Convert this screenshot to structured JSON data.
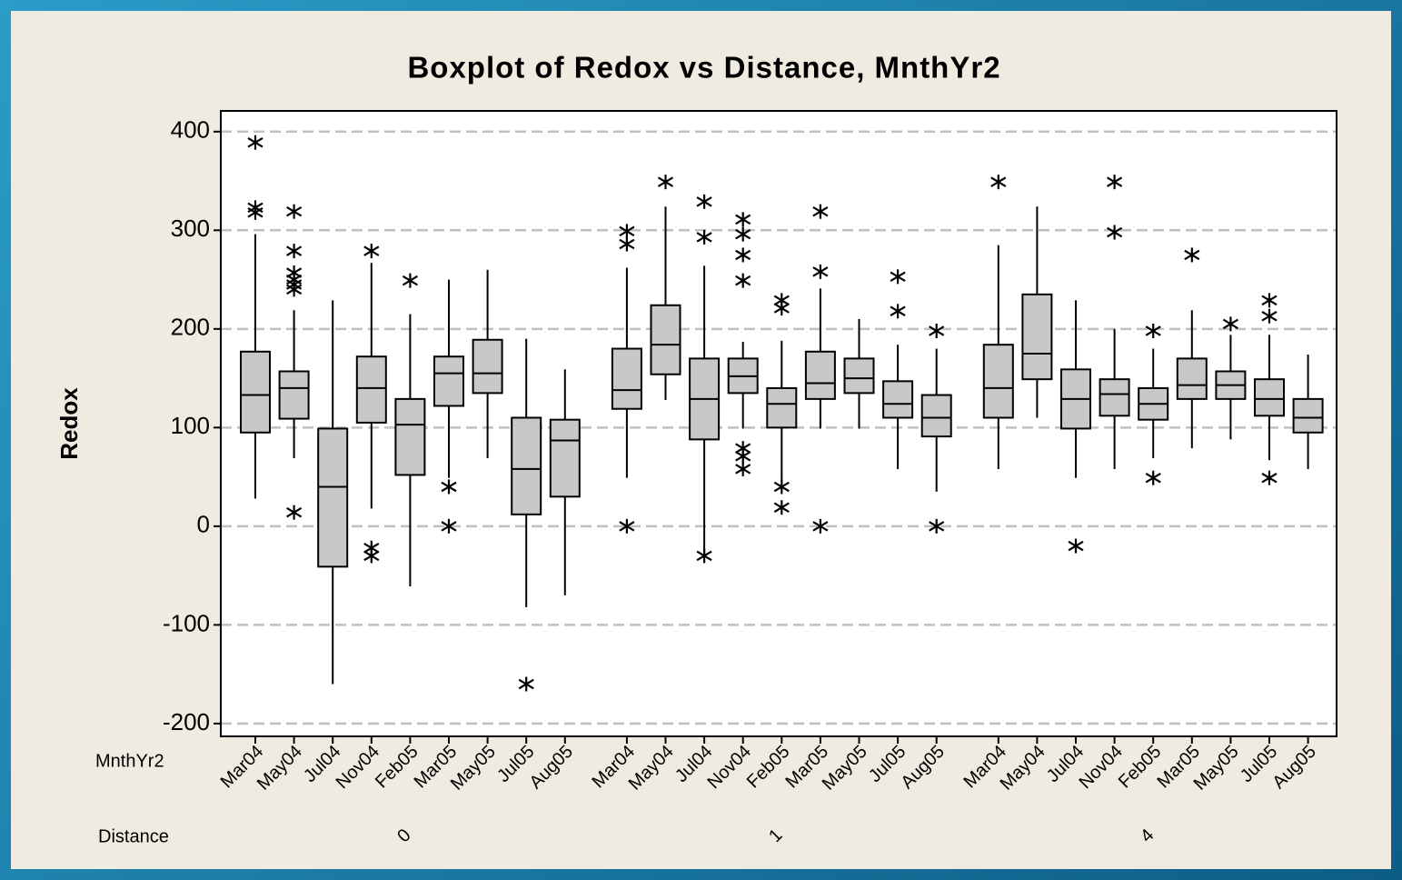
{
  "chart_data": {
    "type": "boxplot",
    "title": "Boxplot of Redox vs Distance, MnthYr2",
    "y_label": "Redox",
    "x_row_labels": [
      "MnthYr2",
      "Distance"
    ],
    "ylim": [
      -213,
      421
    ],
    "yticks": [
      -200,
      -100,
      0,
      100,
      200,
      300,
      400
    ],
    "grid": true,
    "box_color": "#c8c8c8",
    "groups": [
      {
        "label": "0",
        "categories": [
          "Mar04",
          "May04",
          "Jul04",
          "Nov04",
          "Feb05",
          "Mar05",
          "May05",
          "Jul05",
          "Aug05"
        ],
        "boxes": [
          {
            "min": 28,
            "q1": 95,
            "median": 133,
            "q3": 177,
            "max": 296,
            "outliers": [
              389,
              323,
              318
            ]
          },
          {
            "min": 69,
            "q1": 109,
            "median": 140,
            "q3": 157,
            "max": 219,
            "outliers": [
              319,
              279,
              257,
              250,
              245,
              240,
              14
            ]
          },
          {
            "min": -160,
            "q1": -41,
            "median": 40,
            "q3": 99,
            "max": 229,
            "outliers": []
          },
          {
            "min": 18,
            "q1": 105,
            "median": 140,
            "q3": 172,
            "max": 267,
            "outliers": [
              279,
              -22,
              -30
            ]
          },
          {
            "min": -61,
            "q1": 52,
            "median": 103,
            "q3": 129,
            "max": 215,
            "outliers": [
              249
            ]
          },
          {
            "min": 49,
            "q1": 122,
            "median": 155,
            "q3": 172,
            "max": 250,
            "outliers": [
              40,
              0
            ]
          },
          {
            "min": 69,
            "q1": 135,
            "median": 155,
            "q3": 189,
            "max": 260,
            "outliers": []
          },
          {
            "min": -82,
            "q1": 12,
            "median": 58,
            "q3": 110,
            "max": 190,
            "outliers": [
              -160
            ]
          },
          {
            "min": -70,
            "q1": 30,
            "median": 87,
            "q3": 108,
            "max": 159,
            "outliers": []
          }
        ]
      },
      {
        "label": "1",
        "categories": [
          "Mar04",
          "May04",
          "Jul04",
          "Nov04",
          "Feb05",
          "Mar05",
          "May05",
          "Jul05",
          "Aug05"
        ],
        "boxes": [
          {
            "min": 49,
            "q1": 119,
            "median": 138,
            "q3": 180,
            "max": 262,
            "outliers": [
              299,
              286,
              0
            ]
          },
          {
            "min": 128,
            "q1": 154,
            "median": 184,
            "q3": 224,
            "max": 324,
            "outliers": [
              349
            ]
          },
          {
            "min": -28,
            "q1": 88,
            "median": 129,
            "q3": 170,
            "max": 264,
            "outliers": [
              329,
              293,
              -30
            ]
          },
          {
            "min": 99,
            "q1": 135,
            "median": 152,
            "q3": 170,
            "max": 187,
            "outliers": [
              311,
              296,
              275,
              249,
              79,
              71,
              58
            ]
          },
          {
            "min": 47,
            "q1": 100,
            "median": 124,
            "q3": 140,
            "max": 188,
            "outliers": [
              229,
              221,
              40,
              19
            ]
          },
          {
            "min": 99,
            "q1": 129,
            "median": 145,
            "q3": 177,
            "max": 241,
            "outliers": [
              319,
              258,
              0
            ]
          },
          {
            "min": 99,
            "q1": 135,
            "median": 150,
            "q3": 170,
            "max": 210,
            "outliers": []
          },
          {
            "min": 58,
            "q1": 110,
            "median": 124,
            "q3": 147,
            "max": 184,
            "outliers": [
              253,
              218
            ]
          },
          {
            "min": 35,
            "q1": 91,
            "median": 110,
            "q3": 133,
            "max": 180,
            "outliers": [
              198,
              0
            ]
          }
        ]
      },
      {
        "label": "4",
        "categories": [
          "Mar04",
          "May04",
          "Jul04",
          "Nov04",
          "Feb05",
          "Mar05",
          "May05",
          "Jul05",
          "Aug05"
        ],
        "boxes": [
          {
            "min": 58,
            "q1": 110,
            "median": 140,
            "q3": 184,
            "max": 285,
            "outliers": [
              349
            ]
          },
          {
            "min": 110,
            "q1": 149,
            "median": 175,
            "q3": 235,
            "max": 324,
            "outliers": []
          },
          {
            "min": 49,
            "q1": 99,
            "median": 129,
            "q3": 159,
            "max": 229,
            "outliers": [
              -20
            ]
          },
          {
            "min": 58,
            "q1": 112,
            "median": 134,
            "q3": 149,
            "max": 200,
            "outliers": [
              349,
              298
            ]
          },
          {
            "min": 69,
            "q1": 108,
            "median": 124,
            "q3": 140,
            "max": 180,
            "outliers": [
              198,
              49
            ]
          },
          {
            "min": 79,
            "q1": 129,
            "median": 143,
            "q3": 170,
            "max": 219,
            "outliers": [
              275
            ]
          },
          {
            "min": 88,
            "q1": 129,
            "median": 143,
            "q3": 157,
            "max": 194,
            "outliers": [
              205
            ]
          },
          {
            "min": 67,
            "q1": 112,
            "median": 129,
            "q3": 149,
            "max": 194,
            "outliers": [
              229,
              213,
              49
            ]
          },
          {
            "min": 58,
            "q1": 95,
            "median": 110,
            "q3": 129,
            "max": 174,
            "outliers": []
          }
        ]
      }
    ]
  }
}
